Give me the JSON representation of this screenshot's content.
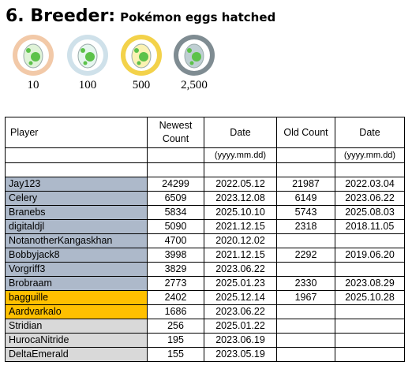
{
  "title": {
    "main": "6. Breeder:",
    "sub": "Pokémon eggs hatched"
  },
  "badges": [
    {
      "label": "10",
      "icon": "bronze-egg-badge-icon",
      "ring": "#f2c9a8",
      "egg": "#dff3d8"
    },
    {
      "label": "100",
      "icon": "silver-egg-badge-icon",
      "ring": "#cfe1ea",
      "egg": "#e6f6ef"
    },
    {
      "label": "500",
      "icon": "gold-egg-badge-icon",
      "ring": "#f3d24a",
      "egg": "#fbf2b3"
    },
    {
      "label": "2,500",
      "icon": "platinum-egg-badge-icon",
      "ring": "#7f8c92",
      "egg": "#bfcfd3"
    }
  ],
  "table": {
    "headers": {
      "player": "Player",
      "newest_count": "Newest Count",
      "date1": "Date",
      "old_count": "Old Count",
      "date2": "Date"
    },
    "date_format": "(yyyy.mm.dd)",
    "rows": [
      {
        "player": "Jay123",
        "newest": "24299",
        "date": "2022.05.12",
        "old": "21987",
        "old_date": "2022.03.04",
        "tier": "blue"
      },
      {
        "player": "Celery",
        "newest": "6509",
        "date": "2023.12.08",
        "old": "6149",
        "old_date": "2023.06.22",
        "tier": "blue"
      },
      {
        "player": "Branebs",
        "newest": "5834",
        "date": "2025.10.10",
        "old": "5743",
        "old_date": "2025.08.03",
        "tier": "blue"
      },
      {
        "player": "digitaldjl",
        "newest": "5090",
        "date": "2021.12.15",
        "old": "2318",
        "old_date": "2018.11.05",
        "tier": "blue"
      },
      {
        "player": "NotanotherKangaskhan",
        "newest": "4700",
        "date": "2020.12.02",
        "old": "",
        "old_date": "",
        "tier": "blue"
      },
      {
        "player": "Bobbyjack8",
        "newest": "3998",
        "date": "2021.12.15",
        "old": "2292",
        "old_date": "2019.06.20",
        "tier": "blue"
      },
      {
        "player": "Vorgriff3",
        "newest": "3829",
        "date": "2023.06.22",
        "old": "",
        "old_date": "",
        "tier": "blue"
      },
      {
        "player": "Brobraam",
        "newest": "2773",
        "date": "2025.01.23",
        "old": "2330",
        "old_date": "2023.08.29",
        "tier": "blue"
      },
      {
        "player": "bagguille",
        "newest": "2402",
        "date": "2025.12.14",
        "old": "1967",
        "old_date": "2025.10.28",
        "tier": "gold"
      },
      {
        "player": "Aardvarkalo",
        "newest": "1686",
        "date": "2023.06.22",
        "old": "",
        "old_date": "",
        "tier": "gold"
      },
      {
        "player": "Stridian",
        "newest": "256",
        "date": "2025.01.22",
        "old": "",
        "old_date": "",
        "tier": "grey"
      },
      {
        "player": "HurocaNitride",
        "newest": "195",
        "date": "2023.06.19",
        "old": "",
        "old_date": "",
        "tier": "grey"
      },
      {
        "player": "DeltaEmerald",
        "newest": "155",
        "date": "2023.05.19",
        "old": "",
        "old_date": "",
        "tier": "grey"
      }
    ]
  }
}
